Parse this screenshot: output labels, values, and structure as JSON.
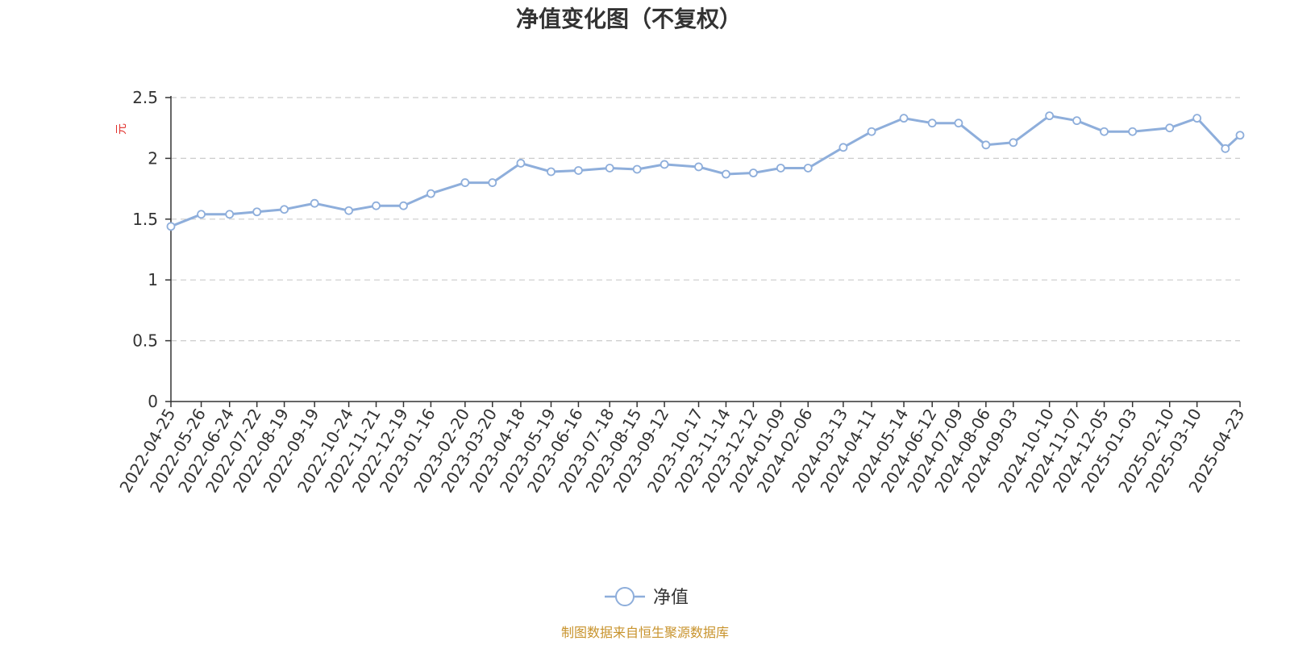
{
  "colors": {
    "line": "#8eaedb",
    "unit": "#e0302c",
    "source": "#c8932c",
    "axis": "#333333",
    "grid": "#cccccc"
  },
  "chart_data": {
    "type": "line",
    "title": "净值变化图（不复权）",
    "ylabel": "元",
    "ylim": [
      0,
      2.5
    ],
    "yticks": [
      "0",
      "0.5",
      "1",
      "1.5",
      "2",
      "2.5"
    ],
    "grid": true,
    "legend_position": "bottom-center",
    "categories": [
      "2022-04-25",
      "2022-05-26",
      "2022-06-24",
      "2022-07-22",
      "2022-08-19",
      "2022-09-19",
      "2022-10-24",
      "2022-11-21",
      "2022-12-19",
      "2023-01-16",
      "2023-02-20",
      "2023-03-20",
      "2023-04-18",
      "2023-05-19",
      "2023-06-16",
      "2023-07-18",
      "2023-08-15",
      "2023-09-12",
      "2023-10-17",
      "2023-11-14",
      "2023-12-12",
      "2024-01-09",
      "2024-02-06",
      "2024-03-13",
      "2024-04-11",
      "2024-05-14",
      "2024-06-12",
      "2024-07-09",
      "2024-08-06",
      "2024-09-03",
      "2024-10-10",
      "2024-11-07",
      "2024-12-05",
      "2025-01-03",
      "2025-02-10",
      "2025-03-10",
      "2025-04-23"
    ],
    "series": [
      {
        "name": "净值",
        "values": [
          1.44,
          1.54,
          1.54,
          1.56,
          1.58,
          1.63,
          1.57,
          1.61,
          1.61,
          1.71,
          1.8,
          1.8,
          1.96,
          1.89,
          1.9,
          1.92,
          1.91,
          1.95,
          1.93,
          1.87,
          1.88,
          1.92,
          1.92,
          2.09,
          2.22,
          2.33,
          2.29,
          2.29,
          2.11,
          2.13,
          2.35,
          2.31,
          2.22,
          2.22,
          2.25,
          2.33,
          2.19
        ]
      }
    ],
    "extra_points": [
      {
        "x": "2025-04-08",
        "y": 2.08
      }
    ]
  },
  "source_note": "制图数据来自恒生聚源数据库"
}
